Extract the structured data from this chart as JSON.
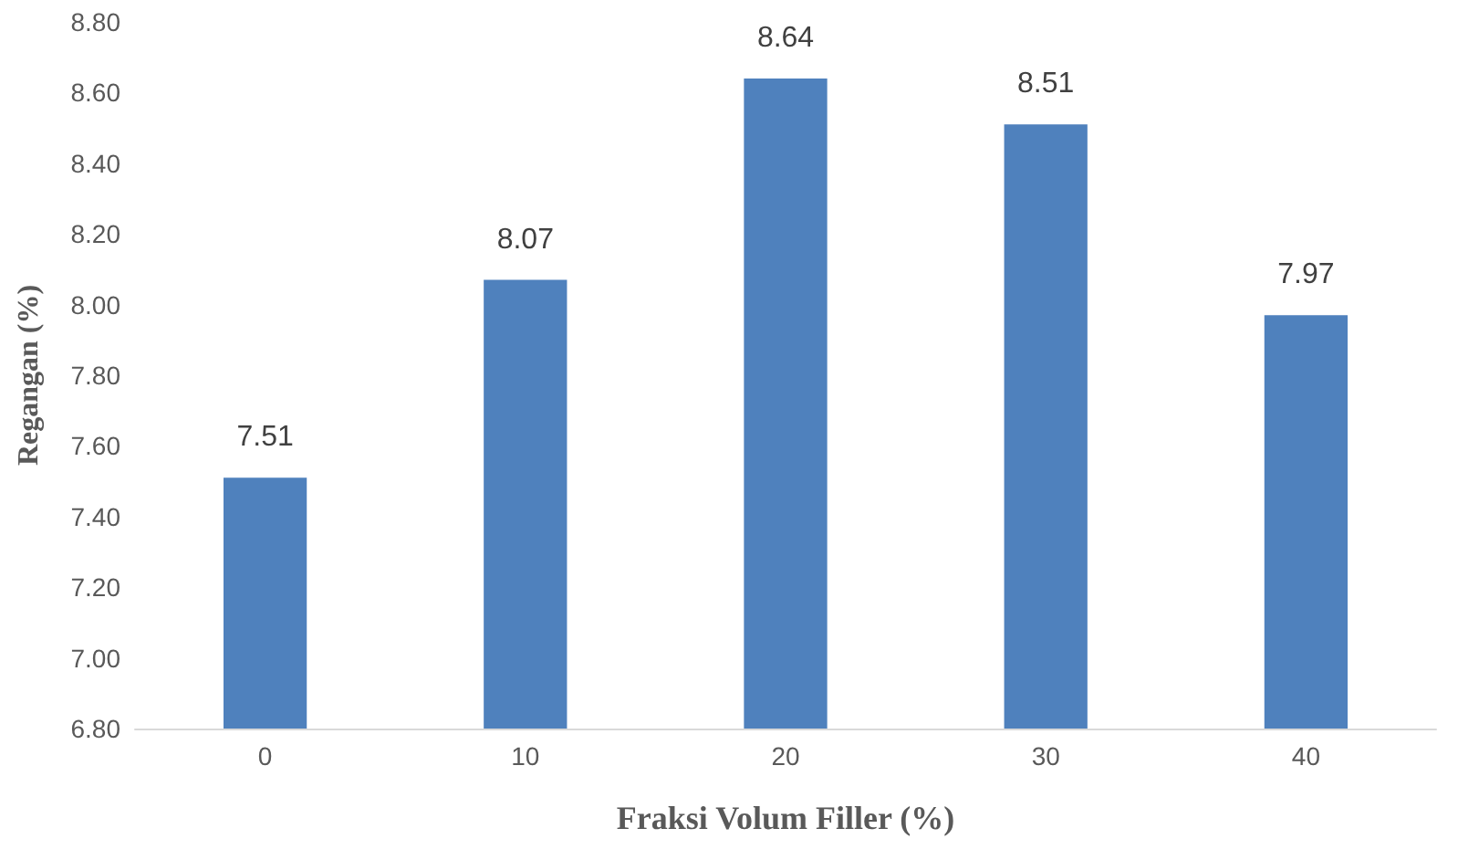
{
  "chart_data": {
    "type": "bar",
    "xlabel": "Fraksi Volum Filler (%)",
    "ylabel": "Regangan (%)",
    "categories": [
      "0",
      "10",
      "20",
      "30",
      "40"
    ],
    "series": [
      {
        "color": "#4f81bd",
        "values": [
          7.51,
          8.07,
          8.64,
          8.51,
          7.97
        ]
      }
    ],
    "ylim": [
      6.8,
      8.8
    ],
    "yticks": [
      {
        "value": 6.8,
        "label": "6.80"
      },
      {
        "value": 7.0,
        "label": "7.00"
      },
      {
        "value": 7.2,
        "label": "7.20"
      },
      {
        "value": 7.4,
        "label": "7.40"
      },
      {
        "value": 7.6,
        "label": "7.60"
      },
      {
        "value": 7.8,
        "label": "7.80"
      },
      {
        "value": 8.0,
        "label": "8.00"
      },
      {
        "value": 8.2,
        "label": "8.20"
      },
      {
        "value": 8.4,
        "label": "8.40"
      },
      {
        "value": 8.6,
        "label": "8.60"
      },
      {
        "value": 8.8,
        "label": "8.80"
      }
    ],
    "data_labels": true,
    "grid": false
  }
}
